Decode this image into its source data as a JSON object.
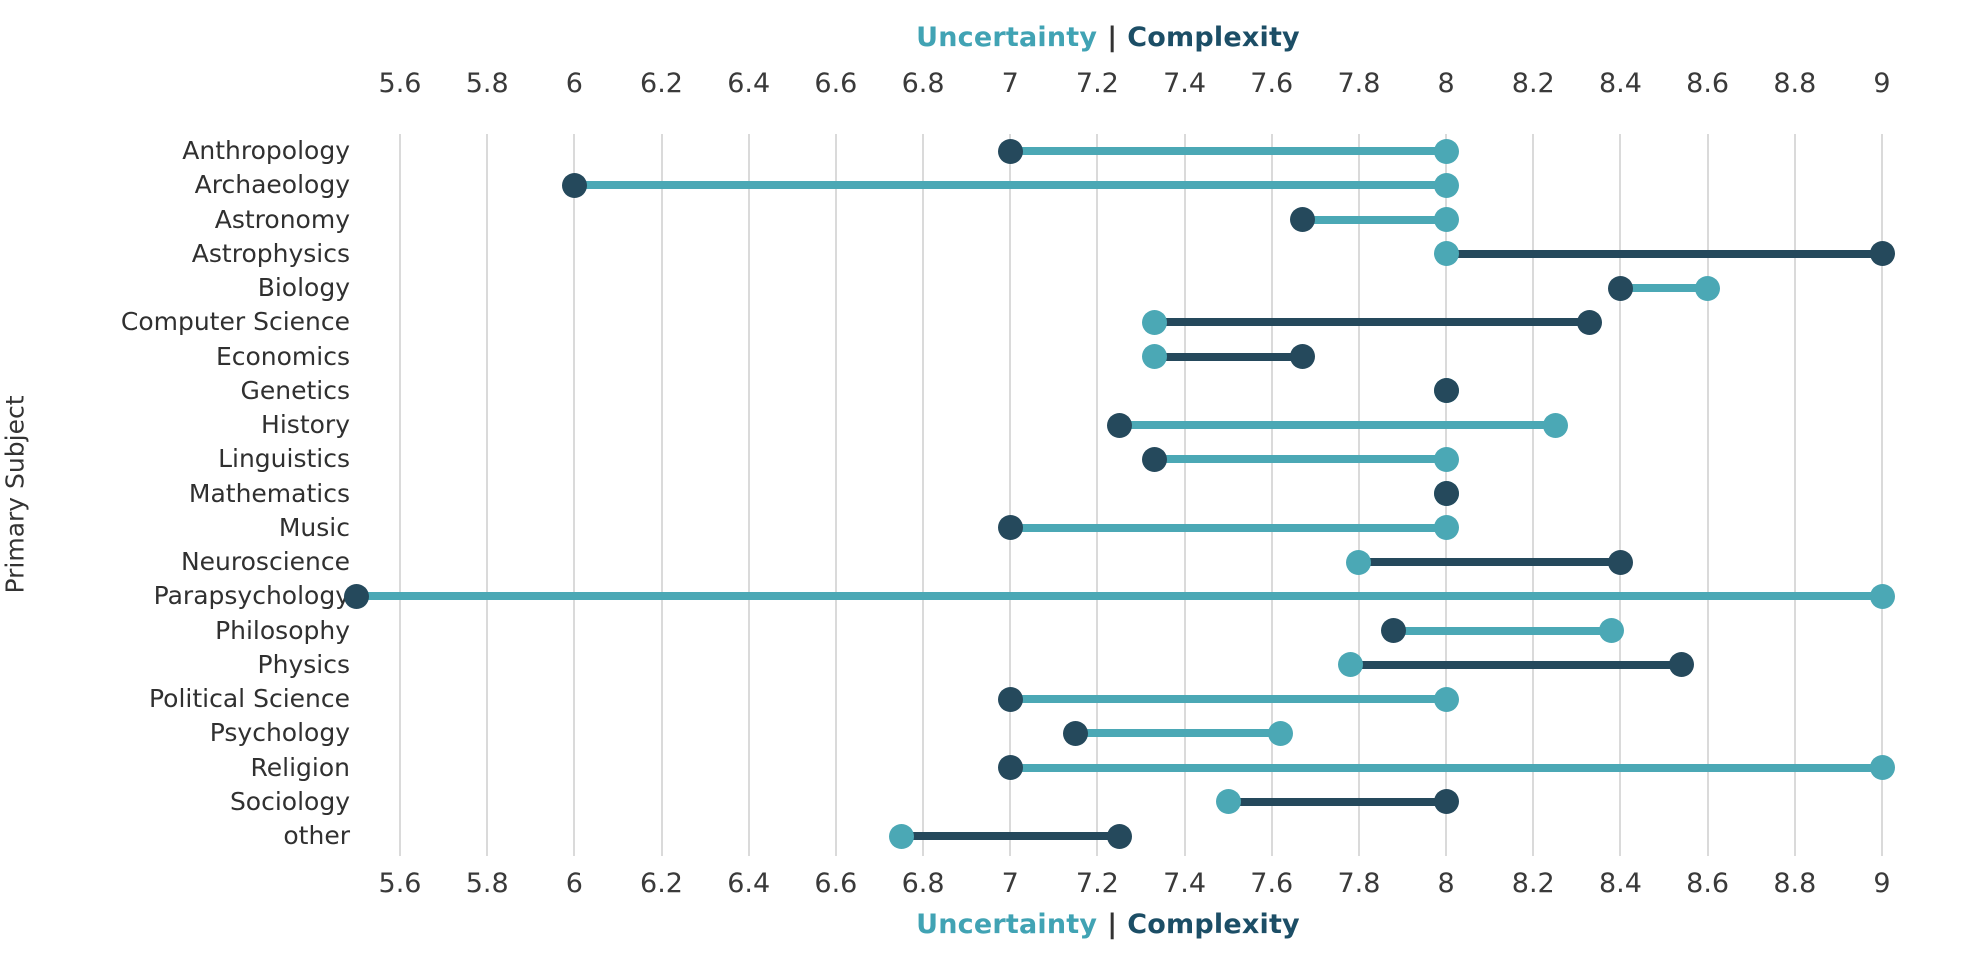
{
  "figure": {
    "top_title": {
      "uncertainty": "Uncertainty",
      "separator": "|",
      "complexity": "Complexity"
    },
    "bottom_title": {
      "uncertainty": "Uncertainty",
      "separator": "|",
      "complexity": "Complexity"
    },
    "y_axis_label": "Primary Subject"
  },
  "colors": {
    "uncertainty_teal": "#4BA8B5",
    "complexity_navy": "#25495C",
    "title_teal": "#41A3B4",
    "title_navy": "#1C4E66",
    "title_separator": "#333333",
    "gridline": "#DADADA",
    "tick_text": "#3A3A3A",
    "label_text": "#303030"
  },
  "chart_data": {
    "type": "dumbbell",
    "orientation": "horizontal",
    "title": "Uncertainty | Complexity",
    "ylabel": "Primary Subject",
    "xlabel": "",
    "grid": "vertical-only",
    "axis_positions": [
      "top",
      "bottom"
    ],
    "xlim": [
      5.6,
      9.0
    ],
    "tick_labels": [
      "5.6",
      "5.8",
      "6",
      "6.2",
      "6.4",
      "6.6",
      "6.8",
      "7",
      "7.2",
      "7.4",
      "7.6",
      "7.8",
      "8",
      "8.2",
      "8.4",
      "8.6",
      "8.8",
      "9"
    ],
    "tick_values": [
      5.6,
      5.8,
      6.0,
      6.2,
      6.4,
      6.6,
      6.8,
      7.0,
      7.2,
      7.4,
      7.6,
      7.8,
      8.0,
      8.2,
      8.4,
      8.6,
      8.8,
      9.0
    ],
    "categories": [
      "Anthropology",
      "Archaeology",
      "Astronomy",
      "Astrophysics",
      "Biology",
      "Computer Science",
      "Economics",
      "Genetics",
      "History",
      "Linguistics",
      "Mathematics",
      "Music",
      "Neuroscience",
      "Parapsychology",
      "Philosophy",
      "Physics",
      "Political Science",
      "Psychology",
      "Religion",
      "Sociology",
      "other"
    ],
    "series": [
      {
        "name": "Uncertainty",
        "color": "#4BA8B5",
        "values": [
          8.0,
          8.0,
          8.0,
          8.0,
          8.6,
          7.33,
          7.33,
          8.0,
          8.25,
          8.0,
          8.0,
          8.0,
          7.8,
          9.0,
          8.38,
          7.78,
          8.0,
          7.62,
          9.0,
          7.5,
          6.75
        ]
      },
      {
        "name": "Complexity",
        "color": "#25495C",
        "values": [
          7.0,
          6.0,
          7.67,
          9.0,
          8.4,
          8.33,
          7.67,
          8.0,
          7.25,
          7.33,
          8.0,
          7.0,
          8.4,
          5.5,
          7.88,
          8.54,
          7.0,
          7.15,
          7.0,
          8.0,
          7.25
        ]
      }
    ],
    "connector_rule": "segment takes the color of the series with the larger value"
  }
}
